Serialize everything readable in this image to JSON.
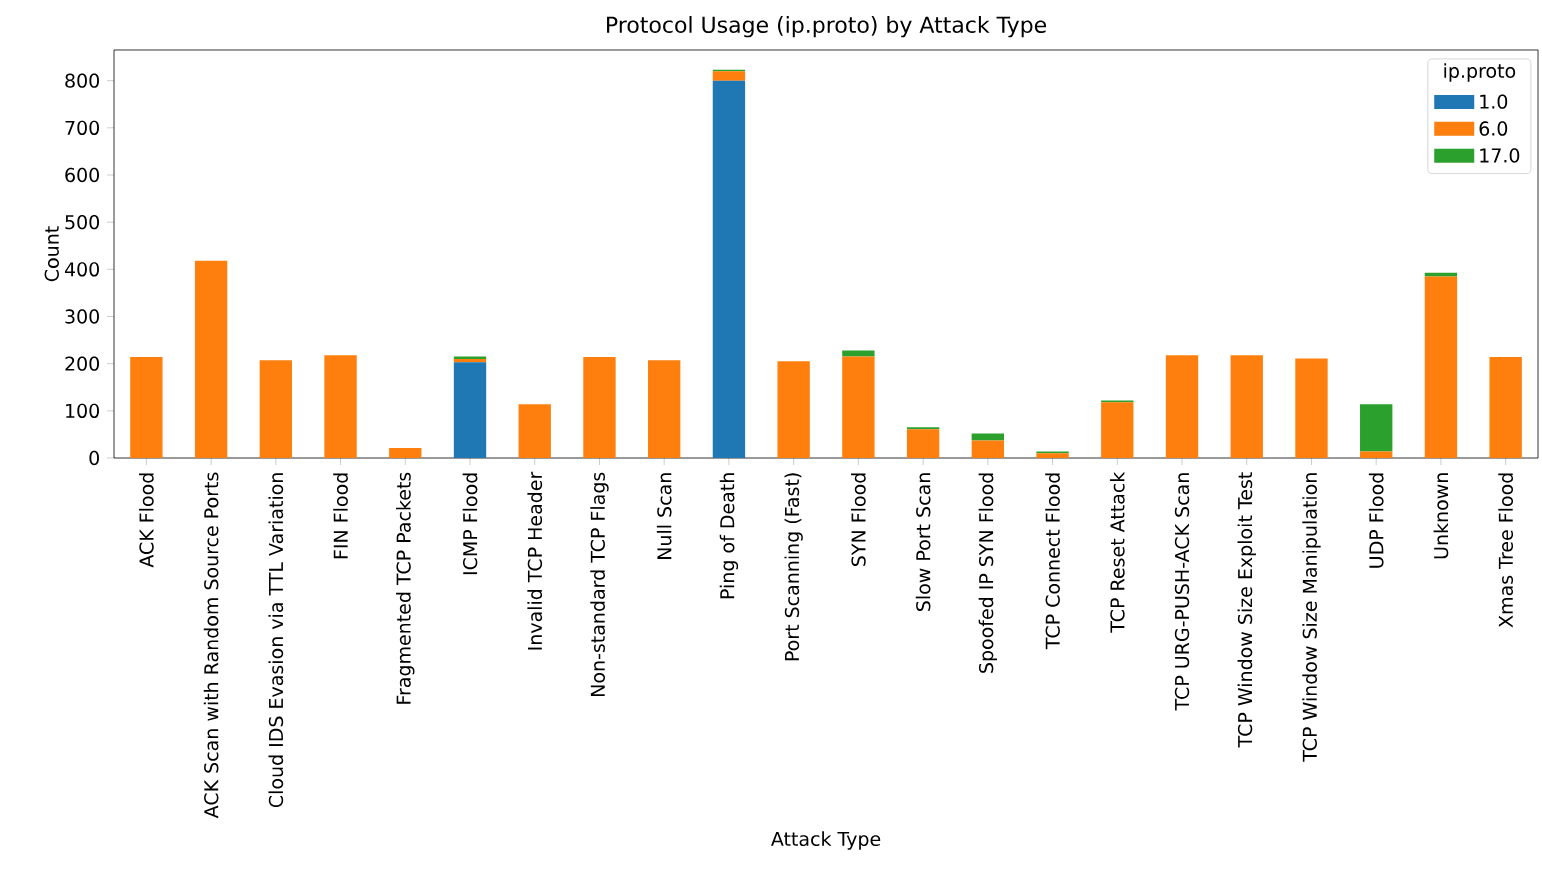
{
  "chart_data": {
    "type": "bar",
    "stacked": true,
    "title": "Protocol Usage (ip.proto) by Attack Type",
    "xlabel": "Attack Type",
    "ylabel": "Count",
    "legend_title": "ip.proto",
    "legend": "top right",
    "categories": [
      "ACK Flood",
      "ACK Scan with Random Source Ports",
      "Cloud IDS Evasion via TTL Variation",
      "FIN Flood",
      "Fragmented TCP Packets",
      "ICMP Flood",
      "Invalid TCP Header",
      "Non-standard TCP Flags",
      "Null Scan",
      "Ping of Death",
      "Port Scanning (Fast)",
      "SYN Flood",
      "Slow Port Scan",
      "Spoofed IP SYN Flood",
      "TCP Connect Flood",
      "TCP Reset Attack",
      "TCP URG-PUSH-ACK Scan",
      "TCP Window Size Exploit Test",
      "TCP Window Size Manipulation",
      "UDP Flood",
      "Unknown",
      "Xmas Tree Flood"
    ],
    "series": [
      {
        "name": "1.0",
        "color": "#1f77b4",
        "values": [
          null,
          null,
          null,
          null,
          null,
          203,
          null,
          null,
          null,
          800,
          null,
          null,
          null,
          null,
          null,
          null,
          null,
          null,
          null,
          null,
          null,
          null
        ]
      },
      {
        "name": "6.0",
        "color": "#ff7f0e",
        "values": [
          214,
          418,
          207,
          218,
          21,
          7,
          114,
          214,
          207,
          20,
          205,
          215,
          61,
          37,
          10,
          118,
          218,
          218,
          211,
          14,
          385,
          214
        ]
      },
      {
        "name": "17.0",
        "color": "#2ca02c",
        "values": [
          null,
          null,
          null,
          null,
          null,
          5,
          null,
          null,
          null,
          3,
          null,
          13,
          4,
          15,
          4,
          4,
          null,
          null,
          null,
          100,
          8,
          null
        ]
      }
    ],
    "ylim": [
      0,
      865
    ],
    "yticks": [
      0,
      100,
      200,
      300,
      400,
      500,
      600,
      700,
      800
    ]
  }
}
